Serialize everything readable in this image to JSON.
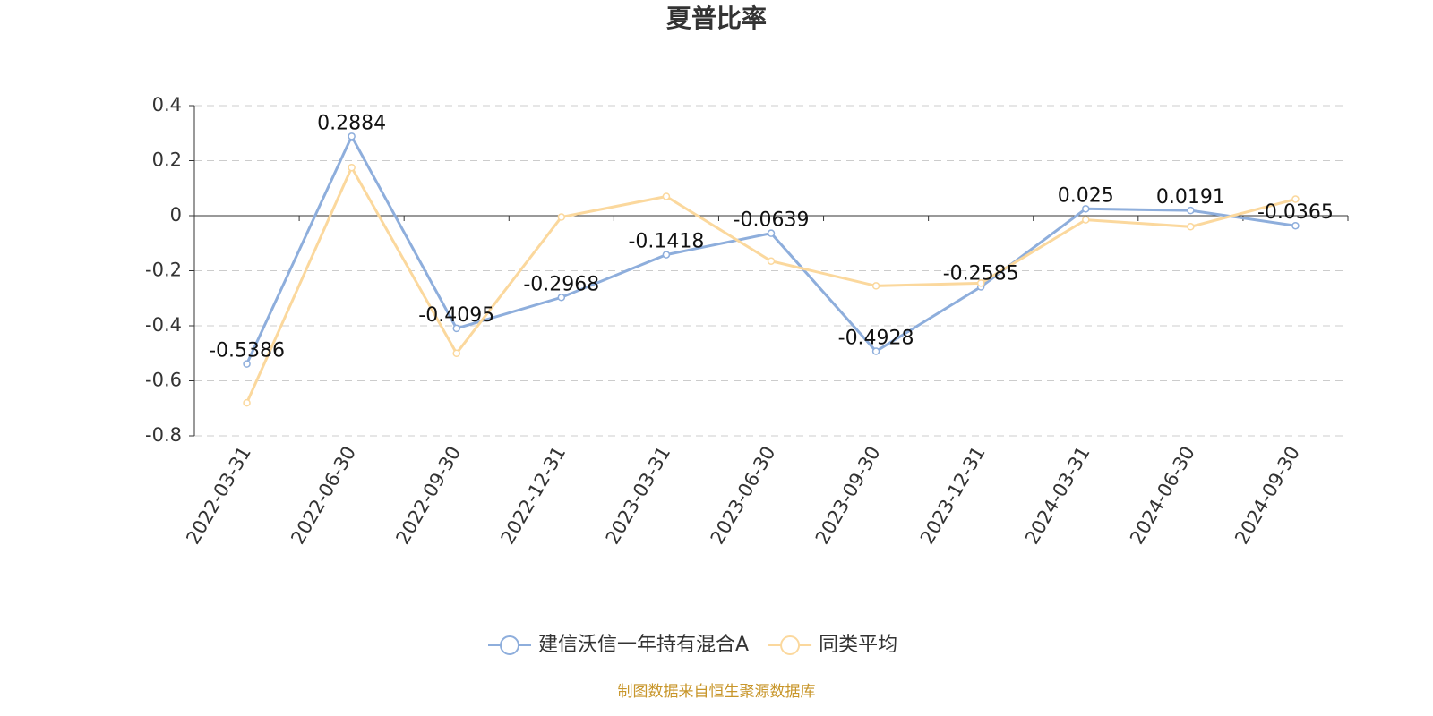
{
  "chart_data": {
    "type": "line",
    "title": "夏普比率",
    "categories": [
      "2022-03-31",
      "2022-06-30",
      "2022-09-30",
      "2022-12-31",
      "2023-03-31",
      "2023-06-30",
      "2023-09-30",
      "2023-12-31",
      "2024-03-31",
      "2024-06-30",
      "2024-09-30"
    ],
    "series": [
      {
        "name": "建信沃信一年持有混合A",
        "color": "#8eaedc",
        "values": [
          -0.5386,
          0.2884,
          -0.4095,
          -0.2968,
          -0.1418,
          -0.0639,
          -0.4928,
          -0.2585,
          0.025,
          0.0191,
          -0.0365
        ],
        "show_labels": true
      },
      {
        "name": "同类平均",
        "color": "#fbd89d",
        "values": [
          -0.68,
          0.175,
          -0.5,
          -0.005,
          0.07,
          -0.165,
          -0.255,
          -0.245,
          -0.015,
          -0.04,
          0.06
        ],
        "show_labels": false
      }
    ],
    "ylim": [
      -0.8,
      0.4
    ],
    "yticks": [
      -0.8,
      -0.6,
      -0.4,
      -0.2,
      0,
      0.2,
      0.4
    ],
    "grid": true
  },
  "source": "制图数据来自恒生聚源数据库"
}
